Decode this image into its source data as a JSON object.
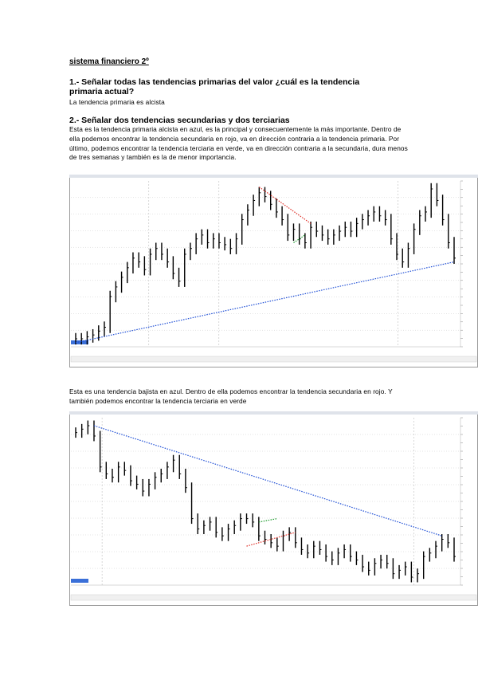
{
  "document": {
    "title": "sistema financiero 2º",
    "q1": {
      "heading": "1.- Señalar todas las tendencias primarias del valor ¿cuál es la tendencia primaria actual?",
      "answer": "La tendencia primaria es alcista"
    },
    "q2": {
      "heading": "2.- Señalar dos tendencias secundarias y dos terciarias",
      "paragraph1": "Esta es la tendencia primaria alcista en azul, es la principal y consecuentemente la más importante. Dentro de ella podemos encontrar la tendencia secundaria en rojo, va en dirección contraria a la tendencia primaria. Por último, podemos encontrar la tendencia terciaria en verde, va en dirección contraria a la secundaria, dura menos de tres semanas y también es la de menor importancia.",
      "paragraph2": "Esta es una tendencia bajista en azul. Dentro de ella podemos encontrar la tendencia secundaria en rojo. Y también podemos encontrar la tendencia terciaria en verde"
    }
  },
  "chart_data": [
    {
      "type": "ohlc",
      "trend": "alcista",
      "colors": {
        "bars": "#000000",
        "primary": "#1f4fd6",
        "secondary": "#e0322a",
        "tertiary": "#1a9a2a",
        "grid": "#c8c8c8"
      },
      "close": [
        8,
        8,
        9,
        10,
        12,
        14,
        30,
        35,
        40,
        45,
        50,
        48,
        44,
        52,
        55,
        52,
        48,
        42,
        38,
        52,
        55,
        60,
        62,
        58,
        60,
        58,
        57,
        55,
        60,
        70,
        75,
        80,
        84,
        82,
        78,
        74,
        70,
        62,
        65,
        60,
        58,
        66,
        64,
        62,
        60,
        62,
        64,
        66,
        64,
        68,
        70,
        72,
        74,
        72,
        70,
        60,
        52,
        48,
        55,
        65,
        72,
        74,
        86,
        80,
        70,
        58,
        50
      ]
    },
    {
      "type": "ohlc",
      "trend": "bajista",
      "colors": {
        "bars": "#000000",
        "primary": "#1f4fd6",
        "secondary": "#e0322a",
        "tertiary": "#1a9a2a",
        "grid": "#c8c8c8"
      },
      "close": [
        90,
        92,
        94,
        88,
        70,
        66,
        64,
        70,
        68,
        62,
        60,
        56,
        60,
        64,
        66,
        70,
        74,
        66,
        58,
        40,
        34,
        36,
        38,
        32,
        30,
        34,
        36,
        40,
        40,
        38,
        30,
        28,
        26,
        24,
        30,
        32,
        26,
        22,
        20,
        24,
        22,
        18,
        16,
        20,
        22,
        18,
        16,
        12,
        10,
        14,
        16,
        14,
        8,
        10,
        12,
        6,
        8,
        18,
        20,
        24,
        28,
        26,
        18
      ]
    }
  ]
}
